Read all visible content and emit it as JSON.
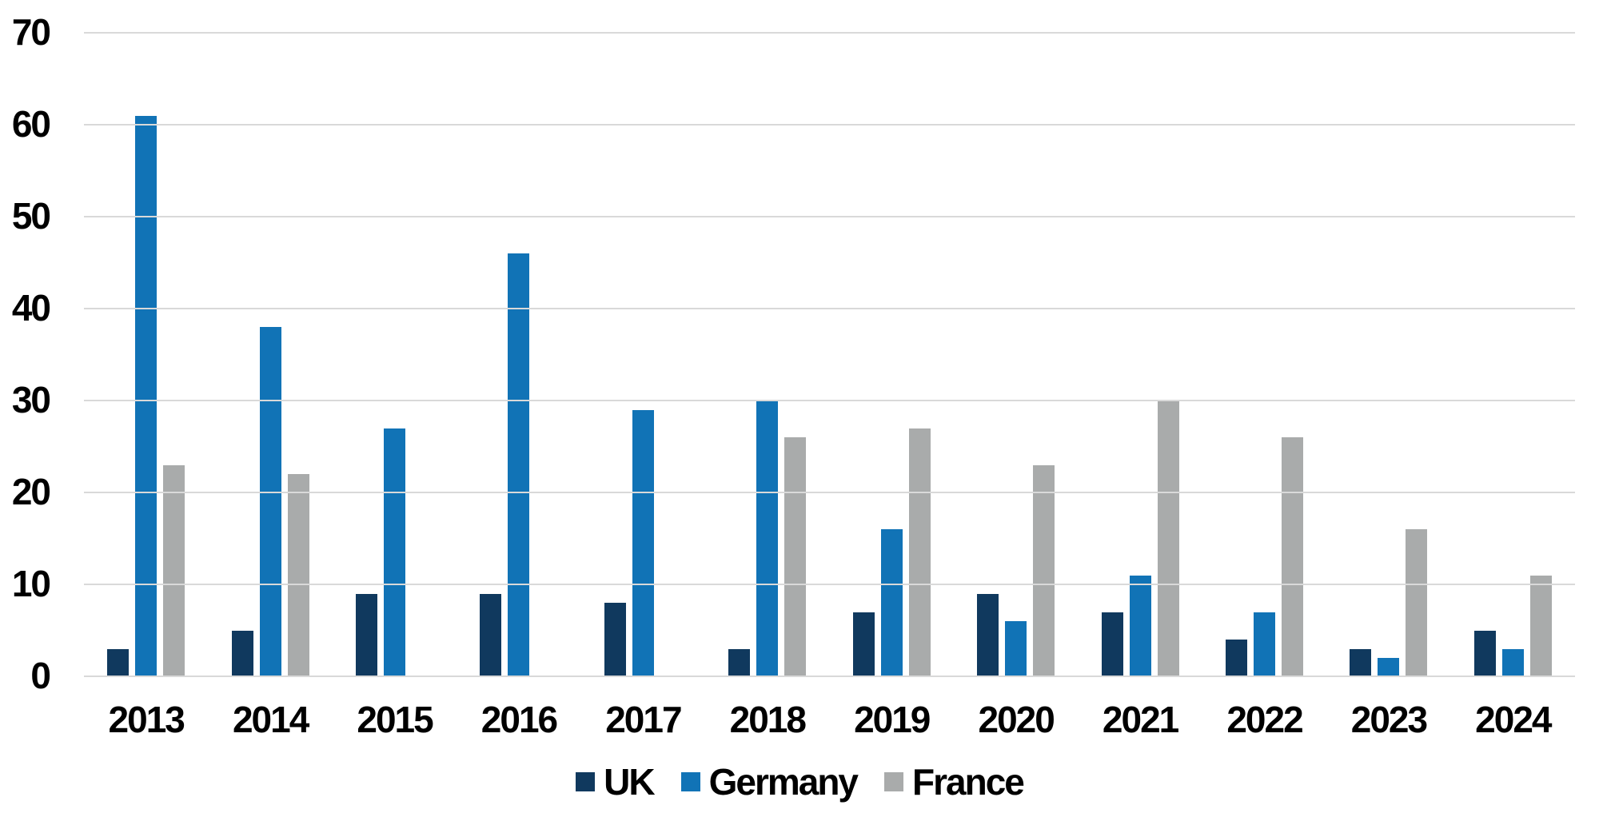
{
  "chart_data": {
    "type": "bar",
    "title": "",
    "xlabel": "",
    "ylabel": "",
    "categories": [
      "2013",
      "2014",
      "2015",
      "2016",
      "2017",
      "2018",
      "2019",
      "2020",
      "2021",
      "2022",
      "2023",
      "2024"
    ],
    "series": [
      {
        "name": "UK",
        "color": "#10395E",
        "values": [
          3,
          5,
          9,
          9,
          8,
          3,
          7,
          9,
          7,
          4,
          3,
          5
        ]
      },
      {
        "name": "Germany",
        "color": "#1173B6",
        "values": [
          61,
          38,
          27,
          46,
          29,
          30,
          16,
          6,
          11,
          7,
          2,
          3
        ]
      },
      {
        "name": "France",
        "color": "#A9ABAB",
        "values": [
          23,
          22,
          0,
          0,
          0,
          26,
          27,
          23,
          30,
          26,
          16,
          11
        ]
      }
    ],
    "ylim": [
      0,
      70
    ],
    "ytick_step": 10,
    "yticks": [
      "0",
      "10",
      "20",
      "30",
      "40",
      "50",
      "60",
      "70"
    ],
    "grid": "horizontal",
    "gridline_color": "#D9D9D9",
    "background_color": "#FFFFFF",
    "text_color": "#000000",
    "legend_position": "bottom"
  }
}
